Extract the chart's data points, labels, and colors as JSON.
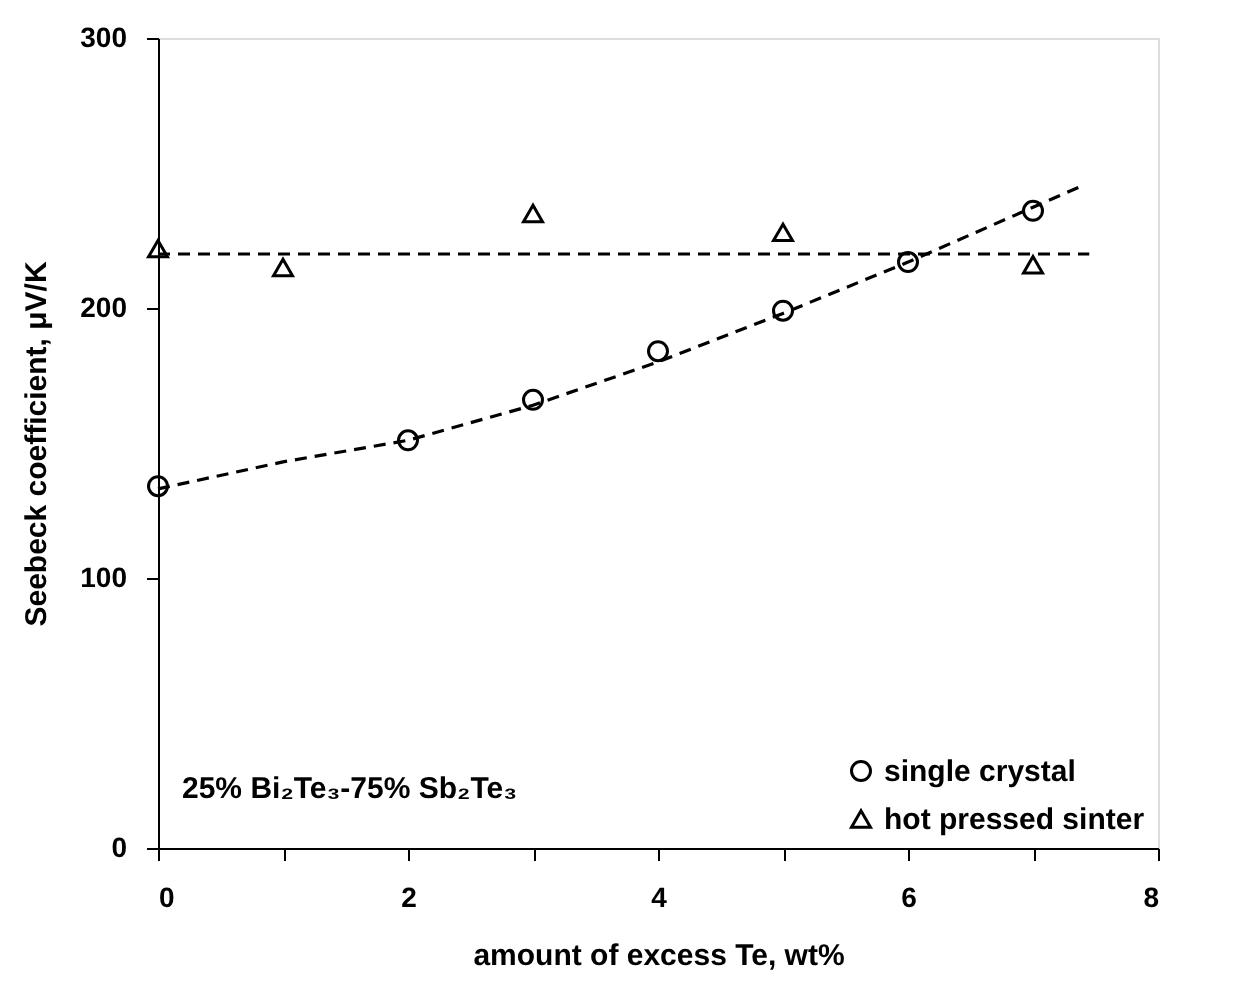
{
  "chart_data": {
    "type": "scatter",
    "xlabel": "amount of excess Te, wt%",
    "ylabel": "Seebeck coefficient, μV/K",
    "xlim": [
      0,
      8
    ],
    "ylim": [
      0,
      300
    ],
    "xticks": [
      0,
      {
        "value": 1,
        "label": null
      },
      2,
      {
        "value": 3,
        "label": null
      },
      4,
      {
        "value": 5,
        "label": null
      },
      6,
      {
        "value": 7,
        "label": null
      },
      8
    ],
    "yticks": [
      0,
      100,
      200,
      300
    ],
    "grid": false,
    "legend": "bottom right",
    "annotations": [
      "25% Bi₂Te₃-75% Sb₂Te₃"
    ],
    "series": [
      {
        "name": "single crystal",
        "color": "#000000",
        "marker": "circle",
        "x": [
          0,
          2,
          3,
          4,
          5,
          6,
          7
        ],
        "values": [
          134,
          151,
          166,
          184,
          199,
          217,
          236
        ]
      },
      {
        "name": "hot pressed sinter",
        "color": "#000000",
        "marker": "triangle",
        "x": [
          0,
          1,
          3,
          5,
          7
        ],
        "values": [
          222,
          215,
          235,
          228,
          216
        ]
      },
      {
        "type": "line",
        "color": "#000000",
        "line_style": "dashed",
        "marker": "none",
        "x": [
          0,
          1,
          2,
          3,
          4,
          5,
          6,
          7.38
        ],
        "values": [
          133,
          143,
          151,
          164,
          180,
          198,
          217,
          245
        ]
      },
      {
        "type": "line",
        "color": "#000000",
        "line_style": "dashed",
        "marker": "none",
        "x": [
          0,
          7.45
        ],
        "values": [
          220,
          220
        ]
      }
    ]
  }
}
